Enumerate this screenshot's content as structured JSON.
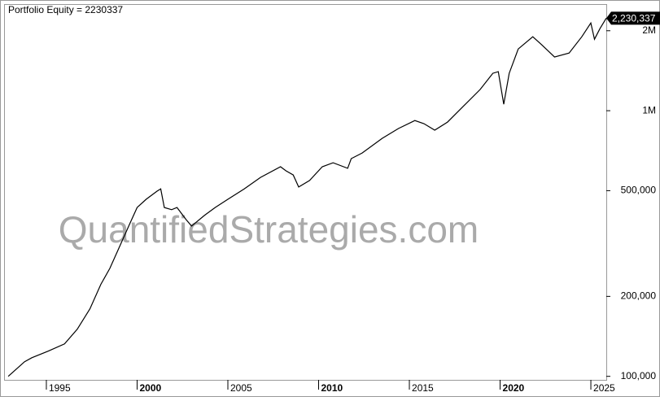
{
  "chart_data": {
    "type": "line",
    "title": "Portfolio Equity = 2230337",
    "watermark": "QuantifiedStrategies.com",
    "x": [
      1992.9,
      1993.8,
      1994.2,
      1995.1,
      1996.0,
      1996.7,
      1997.4,
      1998.0,
      1998.5,
      1999.1,
      1999.6,
      2000.0,
      2000.5,
      2001.1,
      2001.3,
      2001.5,
      2001.9,
      2002.2,
      2002.7,
      2003.0,
      2003.7,
      2004.3,
      2005.0,
      2005.9,
      2006.8,
      2007.9,
      2008.2,
      2008.6,
      2008.9,
      2009.5,
      2010.2,
      2010.8,
      2011.6,
      2011.8,
      2012.4,
      2013.5,
      2014.4,
      2015.3,
      2015.8,
      2016.4,
      2017.1,
      2018.0,
      2018.9,
      2019.6,
      2019.9,
      2020.2,
      2020.5,
      2021.0,
      2021.8,
      2022.3,
      2023.0,
      2023.8,
      2024.5,
      2025.0,
      2025.2,
      2025.5,
      2025.85
    ],
    "values": [
      100000,
      113500,
      117500,
      124400,
      132500,
      150400,
      179500,
      222000,
      255000,
      315000,
      376000,
      432000,
      464000,
      498000,
      508000,
      432000,
      424000,
      432000,
      389000,
      368000,
      403000,
      432000,
      464000,
      508000,
      561000,
      615000,
      594000,
      573000,
      516000,
      546000,
      615000,
      637000,
      607000,
      660000,
      693000,
      787000,
      857000,
      918000,
      894000,
      845000,
      906000,
      1043000,
      1202000,
      1383000,
      1403000,
      1058000,
      1383000,
      1708000,
      1898000,
      1769000,
      1592000,
      1648000,
      1898000,
      2138000,
      1858000,
      2036000,
      2230337
    ],
    "value_labels": [
      null,
      null,
      null,
      null,
      null,
      null,
      null,
      null,
      null,
      null,
      null,
      null,
      null,
      null,
      null,
      null,
      null,
      null,
      null,
      null,
      null,
      null,
      null,
      null,
      null,
      null,
      null,
      null,
      null,
      null,
      null,
      null,
      null,
      null,
      null,
      null,
      null,
      null,
      null,
      null,
      null,
      null,
      null,
      null,
      null,
      null,
      null,
      null,
      null,
      null,
      null,
      null,
      null,
      null,
      null,
      null,
      "2,230,337"
    ],
    "color": "#000000",
    "log_y": true,
    "ylim": [
      97000,
      2520000
    ],
    "yticks": [
      {
        "value": 100000,
        "label": "100,000"
      },
      {
        "value": 200000,
        "label": "200,000"
      },
      {
        "value": 500000,
        "label": "500,000"
      },
      {
        "value": 1000000,
        "label": "1M"
      },
      {
        "value": 2000000,
        "label": "2M"
      }
    ],
    "xlim": [
      1992.67,
      2025.85
    ],
    "xticks": [
      1995,
      2000,
      2005,
      2010,
      2015,
      2020,
      2025
    ],
    "grid": false
  }
}
